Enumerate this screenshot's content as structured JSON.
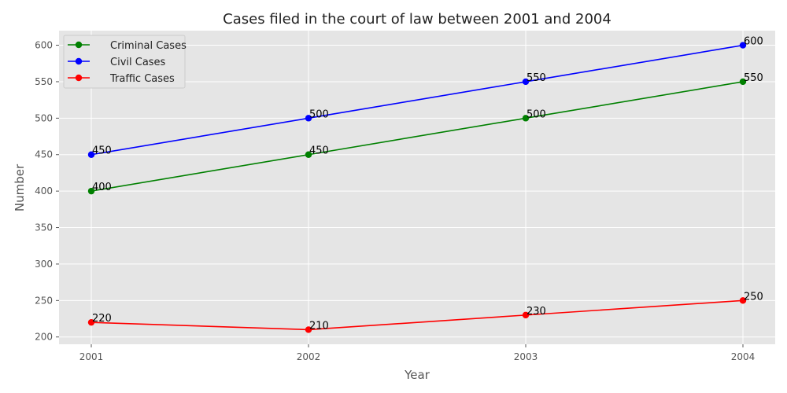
{
  "chart_data": {
    "type": "line",
    "title": "Cases filed in the court of law between 2001 and 2004",
    "xlabel": "Year",
    "ylabel": "Number",
    "x": [
      "2001",
      "2002",
      "2003",
      "2004"
    ],
    "ylim": [
      190,
      620
    ],
    "yticks": [
      200,
      250,
      300,
      350,
      400,
      450,
      500,
      550,
      600
    ],
    "grid": true,
    "legend_position": "top-left",
    "series": [
      {
        "name": "Criminal Cases",
        "color": "#008000",
        "values": [
          400,
          450,
          500,
          550
        ]
      },
      {
        "name": "Civil Cases",
        "color": "#0000ff",
        "values": [
          450,
          500,
          550,
          600
        ]
      },
      {
        "name": "Traffic Cases",
        "color": "#ff0000",
        "values": [
          220,
          210,
          230,
          250
        ]
      }
    ]
  }
}
